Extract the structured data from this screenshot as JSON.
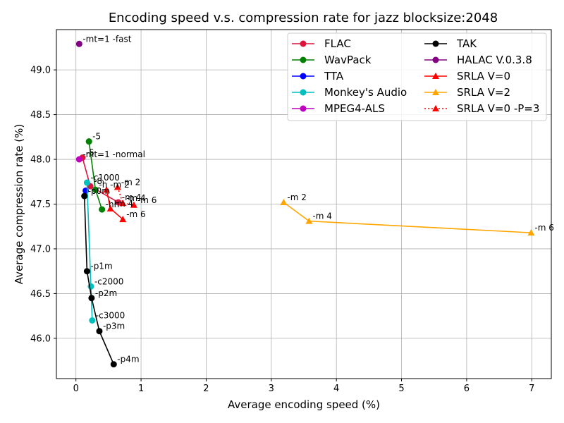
{
  "chart_data": {
    "type": "line",
    "title": "Encoding speed v.s. compression rate for jazz blocksize:2048",
    "xlabel": "Average encoding speed (%)",
    "ylabel": "Average compression rate (%)",
    "xlim": [
      -0.3,
      7.3
    ],
    "ylim": [
      45.55,
      49.45
    ],
    "xticks": [
      0,
      1,
      2,
      3,
      4,
      5,
      6,
      7
    ],
    "xtick_labels": [
      "0",
      "1",
      "2",
      "3",
      "4",
      "5",
      "6",
      "7"
    ],
    "yticks": [
      46.0,
      46.5,
      47.0,
      47.5,
      48.0,
      48.5,
      49.0
    ],
    "ytick_labels": [
      "46.0",
      "46.5",
      "47.0",
      "47.5",
      "48.0",
      "48.5",
      "49.0"
    ],
    "grid": true,
    "legend_position": "top-right",
    "series": [
      {
        "name": "FLAC",
        "color": "#dc143c",
        "marker": "circle",
        "line": "solid",
        "x": [
          0.1,
          0.22,
          0.65
        ],
        "y": [
          48.02,
          47.7,
          47.52
        ],
        "labels": [
          "-5",
          "-8",
          "-m 4"
        ]
      },
      {
        "name": "WavPack",
        "color": "#008000",
        "marker": "circle",
        "line": "solid",
        "x": [
          0.2,
          0.3,
          0.4
        ],
        "y": [
          48.2,
          47.66,
          47.44
        ],
        "labels": [
          "-5",
          "-h",
          "-hh"
        ]
      },
      {
        "name": "TTA",
        "color": "#0000ff",
        "marker": "circle",
        "line": "solid",
        "x": [
          0.15
        ],
        "y": [
          47.65
        ],
        "labels": [
          ""
        ]
      },
      {
        "name": "Monkey's Audio",
        "color": "#00bfbf",
        "marker": "circle",
        "line": "solid",
        "x": [
          0.17,
          0.23,
          0.25
        ],
        "y": [
          47.74,
          46.58,
          46.2
        ],
        "labels": [
          "-c1000",
          "-c2000",
          "-c3000"
        ]
      },
      {
        "name": "MPEG4-ALS",
        "color": "#bf00bf",
        "marker": "circle",
        "line": "solid",
        "x": [
          0.05
        ],
        "y": [
          48.0
        ],
        "labels": [
          "-mt=1 -normal"
        ]
      },
      {
        "name": "TAK",
        "color": "#000000",
        "marker": "circle",
        "line": "solid",
        "x": [
          0.13,
          0.17,
          0.24,
          0.36,
          0.58
        ],
        "y": [
          47.59,
          46.75,
          46.45,
          46.08,
          45.71
        ],
        "labels": [
          "-p0m",
          "-p1m",
          "-p2m",
          "-p3m",
          "-p4m"
        ]
      },
      {
        "name": "HALAC V.0.3.8",
        "color": "#800080",
        "marker": "circle",
        "line": "solid",
        "x": [
          0.05
        ],
        "y": [
          49.29
        ],
        "labels": [
          "-mt=1 -fast"
        ]
      },
      {
        "name": "SRLA V=0",
        "color": "#ff0000",
        "marker": "triangle",
        "line": "solid",
        "x": [
          0.47,
          0.53,
          0.72
        ],
        "y": [
          47.66,
          47.45,
          47.33
        ],
        "labels": [
          "-m 2",
          "-m 4",
          "-m 6"
        ]
      },
      {
        "name": "SRLA V=2",
        "color": "#ffa500",
        "marker": "triangle",
        "line": "solid",
        "x": [
          3.19,
          3.58,
          6.99
        ],
        "y": [
          47.52,
          47.31,
          47.18
        ],
        "labels": [
          "-m 2",
          "-m 4",
          "-m 6"
        ]
      },
      {
        "name": "SRLA V=0 -P=3",
        "color": "#ff0000",
        "marker": "triangle",
        "line": "dotted",
        "x": [
          0.64,
          0.72,
          0.89
        ],
        "y": [
          47.69,
          47.51,
          47.49
        ],
        "labels": [
          "-m 2",
          "-m 4",
          "-m 6"
        ]
      }
    ]
  }
}
